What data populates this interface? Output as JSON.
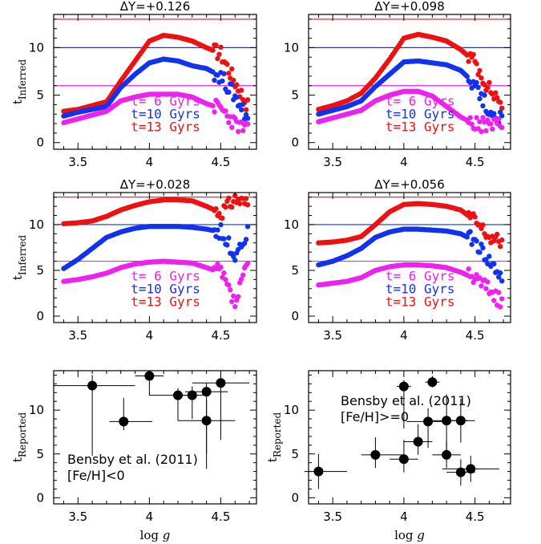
{
  "colors": {
    "red": "#ee1111",
    "blue": "#1133ee",
    "magenta": "#ee22ee",
    "black": "#000000"
  },
  "chart_data": [
    {
      "type": "scatter",
      "title": "ΔY=+0.126",
      "ylabel": "t_Inferred",
      "xlim": [
        3.33,
        4.75
      ],
      "ylim": [
        -0.7,
        13.5
      ],
      "xticks": [
        "3.5",
        "4",
        "4.5"
      ],
      "yticks": [
        "0",
        "5",
        "10"
      ],
      "hlines": [
        {
          "y": 13,
          "color": "red"
        },
        {
          "y": 10,
          "color": "blue"
        },
        {
          "y": 6,
          "color": "magenta"
        }
      ],
      "legend": [
        "t= 6 Gyrs",
        "t=10 Gyrs",
        "t=13 Gyrs"
      ],
      "series": [
        {
          "name": "t=13 Gyrs",
          "color": "red",
          "x": [
            3.4,
            3.5,
            3.6,
            3.7,
            3.8,
            3.9,
            4.0,
            4.1,
            4.2,
            4.3,
            4.4,
            4.5,
            4.6,
            4.7
          ],
          "y": [
            3.3,
            3.5,
            3.9,
            4.3,
            6.5,
            8.6,
            10.7,
            11.3,
            11.1,
            10.7,
            10.0,
            9.4,
            6.4,
            3.6
          ]
        },
        {
          "name": "t=10 Gyrs",
          "color": "blue",
          "x": [
            3.4,
            3.5,
            3.6,
            3.7,
            3.8,
            3.9,
            4.0,
            4.1,
            4.2,
            4.3,
            4.4,
            4.5,
            4.6,
            4.7
          ],
          "y": [
            2.8,
            3.2,
            3.5,
            3.8,
            5.8,
            7.2,
            8.4,
            8.8,
            8.6,
            8.1,
            7.8,
            7.0,
            4.9,
            2.4
          ]
        },
        {
          "name": "t= 6 Gyrs",
          "color": "magenta",
          "x": [
            3.4,
            3.5,
            3.6,
            3.7,
            3.8,
            3.9,
            4.0,
            4.1,
            4.2,
            4.3,
            4.4,
            4.5,
            4.6,
            4.7
          ],
          "y": [
            2.1,
            2.5,
            2.9,
            3.3,
            4.4,
            4.8,
            5.1,
            5.1,
            5.1,
            4.8,
            4.1,
            3.6,
            2.0,
            1.1
          ]
        }
      ]
    },
    {
      "type": "scatter",
      "title": "ΔY=+0.098",
      "ylabel": "",
      "xlim": [
        3.33,
        4.75
      ],
      "ylim": [
        -0.7,
        13.5
      ],
      "xticks": [
        "3.5",
        "4",
        "4.5"
      ],
      "yticks": [
        "0",
        "5",
        "10"
      ],
      "hlines": [
        {
          "y": 13,
          "color": "red"
        },
        {
          "y": 10,
          "color": "blue"
        },
        {
          "y": 6,
          "color": "magenta"
        }
      ],
      "legend": [
        "t= 6 Gyrs",
        "t=10 Gyrs",
        "t=13 Gyrs"
      ],
      "series": [
        {
          "name": "t=13 Gyrs",
          "color": "red",
          "x": [
            3.4,
            3.5,
            3.6,
            3.7,
            3.8,
            3.9,
            4.0,
            4.1,
            4.2,
            4.3,
            4.4,
            4.5,
            4.6,
            4.7
          ],
          "y": [
            3.5,
            3.9,
            4.4,
            5.2,
            6.8,
            8.8,
            11.0,
            11.4,
            11.1,
            10.7,
            9.8,
            8.5,
            5.6,
            4.0
          ]
        },
        {
          "name": "t=10 Gyrs",
          "color": "blue",
          "x": [
            3.4,
            3.5,
            3.6,
            3.7,
            3.8,
            3.9,
            4.0,
            4.1,
            4.2,
            4.3,
            4.4,
            4.5,
            4.6,
            4.7
          ],
          "y": [
            3.0,
            3.4,
            3.8,
            4.4,
            5.9,
            7.2,
            8.5,
            8.6,
            8.4,
            8.2,
            7.6,
            6.2,
            3.3,
            2.4
          ]
        },
        {
          "name": "t= 6 Gyrs",
          "color": "magenta",
          "x": [
            3.4,
            3.5,
            3.6,
            3.7,
            3.8,
            3.9,
            4.0,
            4.1,
            4.2,
            4.3,
            4.4,
            4.5,
            4.6,
            4.7
          ],
          "y": [
            2.2,
            2.6,
            3.0,
            3.4,
            4.4,
            5.0,
            5.4,
            5.4,
            4.9,
            3.8,
            2.7,
            1.9,
            1.8,
            2.0
          ]
        }
      ]
    },
    {
      "type": "scatter",
      "title": "ΔY=+0.028",
      "ylabel": "t_Inferred",
      "xlim": [
        3.33,
        4.75
      ],
      "ylim": [
        -0.7,
        13.5
      ],
      "xticks": [
        "3.5",
        "4",
        "4.5"
      ],
      "yticks": [
        "0",
        "5",
        "10"
      ],
      "hlines": [
        {
          "y": 13,
          "color": "red"
        },
        {
          "y": 10,
          "color": "blue"
        },
        {
          "y": 6,
          "color": "magenta"
        }
      ],
      "legend": [
        "t= 6 Gyrs",
        "t=10 Gyrs",
        "t=13 Gyrs"
      ],
      "series": [
        {
          "name": "t=13 Gyrs",
          "color": "red",
          "x": [
            3.4,
            3.5,
            3.6,
            3.7,
            3.8,
            3.9,
            4.0,
            4.1,
            4.2,
            4.3,
            4.4,
            4.5,
            4.6,
            4.7
          ],
          "y": [
            10.1,
            10.2,
            10.4,
            10.9,
            11.6,
            12.1,
            12.5,
            12.7,
            12.7,
            12.6,
            12.0,
            11.3,
            12.8,
            12.2
          ]
        },
        {
          "name": "t=10 Gyrs",
          "color": "blue",
          "x": [
            3.4,
            3.5,
            3.6,
            3.7,
            3.8,
            3.9,
            4.0,
            4.1,
            4.2,
            4.3,
            4.4,
            4.5,
            4.6,
            4.7
          ],
          "y": [
            5.2,
            6.2,
            7.4,
            8.6,
            9.2,
            9.6,
            9.8,
            9.8,
            9.8,
            9.7,
            9.5,
            9.2,
            6.8,
            9.3
          ]
        },
        {
          "name": "t= 6 Gyrs",
          "color": "magenta",
          "x": [
            3.4,
            3.5,
            3.6,
            3.7,
            3.8,
            3.9,
            4.0,
            4.1,
            4.2,
            4.3,
            4.4,
            4.5,
            4.6,
            4.7
          ],
          "y": [
            3.8,
            4.0,
            4.3,
            4.7,
            5.3,
            5.7,
            5.9,
            6.0,
            5.9,
            5.8,
            5.3,
            4.8,
            1.2,
            6.3
          ]
        }
      ]
    },
    {
      "type": "scatter",
      "title": "ΔY=+0.056",
      "ylabel": "",
      "xlim": [
        3.33,
        4.75
      ],
      "ylim": [
        -0.7,
        13.5
      ],
      "xticks": [
        "3.5",
        "4",
        "4.5"
      ],
      "yticks": [
        "0",
        "5",
        "10"
      ],
      "hlines": [
        {
          "y": 13,
          "color": "red"
        },
        {
          "y": 10,
          "color": "blue"
        },
        {
          "y": 6,
          "color": "magenta"
        }
      ],
      "legend": [
        "t= 6 Gyrs",
        "t=10 Gyrs",
        "t=13 Gyrs"
      ],
      "series": [
        {
          "name": "t=13 Gyrs",
          "color": "red",
          "x": [
            3.4,
            3.5,
            3.6,
            3.7,
            3.8,
            3.9,
            4.0,
            4.1,
            4.2,
            4.3,
            4.4,
            4.5,
            4.6,
            4.7
          ],
          "y": [
            8.0,
            8.1,
            8.3,
            8.7,
            10.0,
            11.4,
            12.2,
            12.3,
            12.2,
            12.0,
            11.6,
            10.4,
            8.6,
            7.9
          ]
        },
        {
          "name": "t=10 Gyrs",
          "color": "blue",
          "x": [
            3.4,
            3.5,
            3.6,
            3.7,
            3.8,
            3.9,
            4.0,
            4.1,
            4.2,
            4.3,
            4.4,
            4.5,
            4.6,
            4.7
          ],
          "y": [
            5.6,
            6.0,
            6.6,
            7.4,
            8.6,
            9.2,
            9.5,
            9.5,
            9.4,
            9.3,
            9.0,
            8.2,
            6.0,
            4.0
          ]
        },
        {
          "name": "t= 6 Gyrs",
          "color": "magenta",
          "x": [
            3.4,
            3.5,
            3.6,
            3.7,
            3.8,
            3.9,
            4.0,
            4.1,
            4.2,
            4.3,
            4.4,
            4.5,
            4.6,
            4.7
          ],
          "y": [
            3.4,
            3.6,
            3.8,
            4.2,
            5.0,
            5.4,
            5.6,
            5.6,
            5.5,
            5.3,
            4.8,
            4.1,
            3.0,
            1.2
          ]
        }
      ]
    },
    {
      "type": "scatter",
      "title": "",
      "ylabel": "t_Reported",
      "xlabel": "log g",
      "xlim": [
        3.33,
        4.75
      ],
      "ylim": [
        -0.7,
        14.5
      ],
      "xticks": [
        "3.5",
        "4",
        "4.5"
      ],
      "yticks": [
        "0",
        "5",
        "10"
      ],
      "annotation": [
        "Bensby et al. (2011)",
        "[Fe/H]<0"
      ],
      "points": [
        {
          "x": 3.6,
          "y": 12.8,
          "xerr": [
            0.27,
            0.3
          ],
          "yerr": [
            8.0,
            1.2
          ]
        },
        {
          "x": 3.82,
          "y": 8.7,
          "xerr": [
            0.1,
            0.2
          ],
          "yerr": [
            1.0,
            2.7
          ]
        },
        {
          "x": 4.0,
          "y": 13.9,
          "xerr": [
            0.1,
            0.1
          ],
          "yerr": [
            2.2,
            0.3
          ]
        },
        {
          "x": 4.2,
          "y": 11.7,
          "xerr": [
            0.2,
            0.1
          ],
          "yerr": [
            2.9,
            0.8
          ]
        },
        {
          "x": 4.3,
          "y": 11.7,
          "xerr": [
            0.1,
            0.1
          ],
          "yerr": [
            2.7,
            1.0
          ]
        },
        {
          "x": 4.4,
          "y": 12.1,
          "xerr": [
            0.15,
            0.15
          ],
          "yerr": [
            8.8,
            1.0
          ]
        },
        {
          "x": 4.4,
          "y": 8.8,
          "xerr": [
            0.2,
            0.2
          ],
          "yerr": [
            3.8,
            2.3
          ]
        },
        {
          "x": 4.5,
          "y": 13.1,
          "xerr": [
            0.2,
            0.2
          ],
          "yerr": [
            6.5,
            1.3
          ]
        }
      ]
    },
    {
      "type": "scatter",
      "title": "",
      "ylabel": "t_Reported",
      "xlabel": "log g",
      "xlim": [
        3.33,
        4.75
      ],
      "ylim": [
        -0.7,
        14.5
      ],
      "xticks": [
        "3.5",
        "4",
        "4.5"
      ],
      "yticks": [
        "0",
        "5",
        "10"
      ],
      "annotation": [
        "Bensby et al. (2011)",
        "[Fe/H]>=0"
      ],
      "points": [
        {
          "x": 3.4,
          "y": 3.0,
          "xerr": [
            0.1,
            0.2
          ],
          "yerr": [
            2.0,
            2.0
          ]
        },
        {
          "x": 3.8,
          "y": 4.9,
          "xerr": [
            0.1,
            0.2
          ],
          "yerr": [
            1.5,
            2.0
          ]
        },
        {
          "x": 4.0,
          "y": 4.4,
          "xerr": [
            0.1,
            0.1
          ],
          "yerr": [
            1.5,
            2.2
          ]
        },
        {
          "x": 4.0,
          "y": 12.7,
          "xerr": [
            0.05,
            0.05
          ],
          "yerr": [
            4.8,
            0.7
          ]
        },
        {
          "x": 4.1,
          "y": 6.4,
          "xerr": [
            0.1,
            0.1
          ],
          "yerr": [
            1.5,
            2.0
          ]
        },
        {
          "x": 4.17,
          "y": 8.7,
          "xerr": [
            0.15,
            0.15
          ],
          "yerr": [
            3.0,
            1.5
          ]
        },
        {
          "x": 4.2,
          "y": 13.2,
          "xerr": [
            0.05,
            0.05
          ],
          "yerr": [
            0.6,
            0.7
          ]
        },
        {
          "x": 4.3,
          "y": 8.8,
          "xerr": [
            0.15,
            0.15
          ],
          "yerr": [
            3.5,
            3.0
          ]
        },
        {
          "x": 4.3,
          "y": 4.9,
          "xerr": [
            0.1,
            0.1
          ],
          "yerr": [
            1.5,
            1.5
          ]
        },
        {
          "x": 4.4,
          "y": 8.8,
          "xerr": [
            0.1,
            0.1
          ],
          "yerr": [
            2.5,
            2.5
          ]
        },
        {
          "x": 4.4,
          "y": 2.9,
          "xerr": [
            0.1,
            0.1
          ],
          "yerr": [
            1.5,
            1.5
          ]
        },
        {
          "x": 4.47,
          "y": 3.3,
          "xerr": [
            0.2,
            0.2
          ],
          "yerr": [
            1.5,
            1.5
          ]
        }
      ]
    }
  ]
}
